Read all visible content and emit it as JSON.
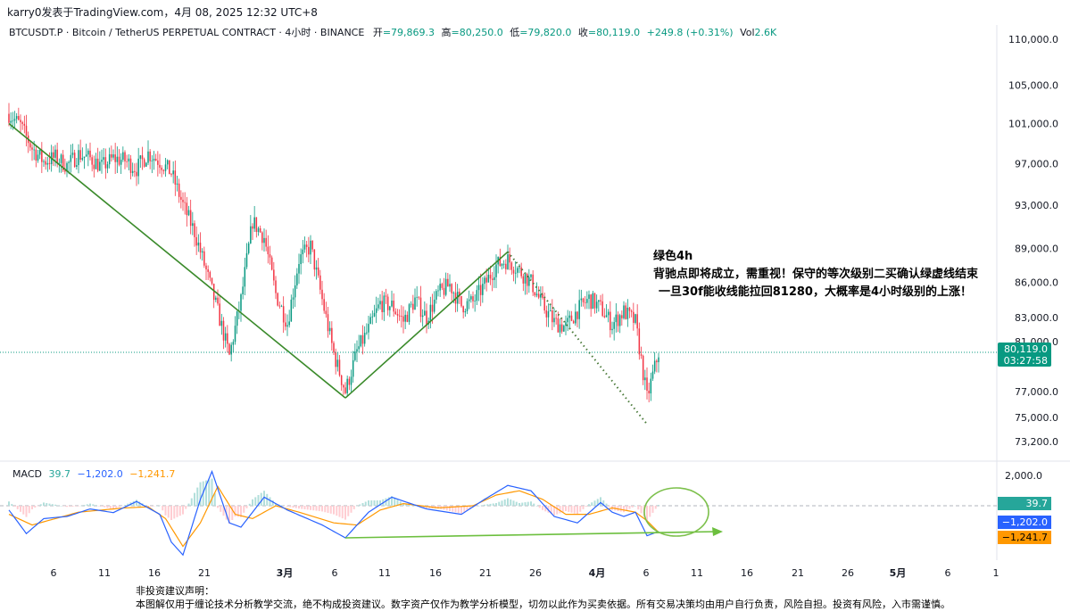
{
  "header": {
    "publisher": "karry0发表于TradingView.com，4月 08, 2025 12:32 UTC+8",
    "symbol": "BTCUSDT.P · Bitcoin / TetherUS PERPETUAL CONTRACT · 4小时 · BINANCE",
    "open_label": "开",
    "open": "=79,869.3",
    "high_label": "高",
    "high": "=80,250.0",
    "low_label": "低",
    "low": "=79,820.0",
    "close_label": "收",
    "close": "=80,119.0",
    "change": "+249.8 (+0.31%)",
    "vol_label": "Vol",
    "vol": "2.6K"
  },
  "annotation": {
    "line1": "绿色4h",
    "line2": "背驰点即将成立，需重视！保守的等次级别二买确认绿虚线结束",
    "line3": "一旦30f能收线能拉回81280，大概率是4小时级别的上涨！"
  },
  "disclaimer": {
    "title": "非投资建议声明：",
    "body": "本图解仅用于缠论技术分析教学交流，绝不构成投资建议。数字资产仅作为教学分析模型，切勿以此作为买卖依据。所有交易决策均由用户自行负责，风险自担。投资有风险，入市需谨慎。"
  },
  "macd_legend": {
    "label": "MACD",
    "hist": "39.7",
    "macd": "−1,202.0",
    "signal": "−1,241.7"
  },
  "colors": {
    "up": "#089981",
    "down": "#f23645",
    "trend_green": "#3a8a2a",
    "macd_line": "#2962ff",
    "signal_line": "#ff9800",
    "circle_green": "#7cc04b",
    "arrow_green": "#6cbf3e"
  },
  "chart_data": {
    "type": "candlestick",
    "symbol": "BTCUSDT.P",
    "timeframe": "4小时",
    "y_ticks": [
      "110,000.0",
      "105,000.0",
      "101,000.0",
      "97,000.0",
      "93,000.0",
      "89,000.0",
      "86,000.0",
      "83,000.0",
      "81,000.0",
      "77,000.0",
      "75,000.0",
      "73,200.0"
    ],
    "y_tick_values": [
      110000,
      105000,
      101000,
      97000,
      93000,
      89000,
      86000,
      83000,
      81000,
      77000,
      75000,
      73200
    ],
    "price_range": [
      72000,
      112000
    ],
    "scale": "log",
    "x_ticks": [
      "6",
      "11",
      "16",
      "21",
      "3月",
      "6",
      "11",
      "16",
      "21",
      "26",
      "4月",
      "6",
      "11",
      "16",
      "21",
      "26",
      "5月",
      "6",
      "1"
    ],
    "last_price": "80,119.0",
    "countdown": "03:27:58",
    "price_path": [
      [
        0,
        102000
      ],
      [
        2,
        100800
      ],
      [
        4,
        98500
      ],
      [
        6,
        97200
      ],
      [
        8,
        97600
      ],
      [
        10,
        96800
      ],
      [
        12,
        97900
      ],
      [
        14,
        97500
      ],
      [
        16,
        96700
      ],
      [
        18,
        97500
      ],
      [
        20,
        97300
      ],
      [
        22,
        96500
      ],
      [
        24,
        98000
      ],
      [
        26,
        97200
      ],
      [
        28,
        96100
      ],
      [
        30,
        93000
      ],
      [
        32,
        90500
      ],
      [
        34,
        87000
      ],
      [
        36,
        83500
      ],
      [
        38,
        79800
      ],
      [
        40,
        84500
      ],
      [
        42,
        91500
      ],
      [
        44,
        90000
      ],
      [
        46,
        85000
      ],
      [
        48,
        82500
      ],
      [
        50,
        88000
      ],
      [
        52,
        89200
      ],
      [
        54,
        84500
      ],
      [
        56,
        80000
      ],
      [
        58,
        77000
      ],
      [
        60,
        80200
      ],
      [
        62,
        82000
      ],
      [
        64,
        84200
      ],
      [
        66,
        84000
      ],
      [
        68,
        82700
      ],
      [
        70,
        84500
      ],
      [
        72,
        83000
      ],
      [
        74,
        85000
      ],
      [
        76,
        85800
      ],
      [
        78,
        84000
      ],
      [
        80,
        84300
      ],
      [
        82,
        85800
      ],
      [
        84,
        87500
      ],
      [
        86,
        88000
      ],
      [
        88,
        87000
      ],
      [
        90,
        86000
      ],
      [
        92,
        84000
      ],
      [
        94,
        82600
      ],
      [
        96,
        82200
      ],
      [
        98,
        83600
      ],
      [
        100,
        84600
      ],
      [
        102,
        83800
      ],
      [
        104,
        82400
      ],
      [
        106,
        83500
      ],
      [
        108,
        82600
      ],
      [
        110,
        76500
      ],
      [
        112,
        80119
      ]
    ],
    "price_key_values": {
      "downtrend_start": 101000,
      "downtrend_low": 76500,
      "uptrend_high": 88700,
      "projection_low": 74500
    },
    "macd": {
      "hist_last": 39.7,
      "macd_last": -1202.0,
      "signal_last": -1241.7,
      "y_tick": "2,000.0",
      "macd_path": [
        [
          0,
          -200
        ],
        [
          3,
          -1300
        ],
        [
          6,
          -600
        ],
        [
          10,
          -500
        ],
        [
          14,
          -150
        ],
        [
          18,
          -320
        ],
        [
          22,
          200
        ],
        [
          26,
          -400
        ],
        [
          28,
          -1700
        ],
        [
          30,
          -2300
        ],
        [
          33,
          300
        ],
        [
          35,
          1600
        ],
        [
          38,
          -800
        ],
        [
          40,
          -1000
        ],
        [
          44,
          400
        ],
        [
          48,
          -200
        ],
        [
          54,
          -900
        ],
        [
          58,
          -1500
        ],
        [
          62,
          -300
        ],
        [
          66,
          400
        ],
        [
          72,
          -150
        ],
        [
          78,
          -400
        ],
        [
          82,
          300
        ],
        [
          86,
          950
        ],
        [
          90,
          700
        ],
        [
          94,
          -500
        ],
        [
          98,
          -800
        ],
        [
          102,
          150
        ],
        [
          104,
          -300
        ],
        [
          106,
          -500
        ],
        [
          108,
          -300
        ],
        [
          110,
          -1400
        ],
        [
          112,
          -1202
        ]
      ],
      "signal_path": [
        [
          0,
          -400
        ],
        [
          4,
          -900
        ],
        [
          8,
          -600
        ],
        [
          12,
          -300
        ],
        [
          16,
          -200
        ],
        [
          20,
          -100
        ],
        [
          24,
          -50
        ],
        [
          27,
          -600
        ],
        [
          30,
          -1900
        ],
        [
          33,
          -800
        ],
        [
          36,
          900
        ],
        [
          39,
          -400
        ],
        [
          42,
          -600
        ],
        [
          46,
          0
        ],
        [
          50,
          -300
        ],
        [
          56,
          -800
        ],
        [
          60,
          -900
        ],
        [
          64,
          -200
        ],
        [
          68,
          100
        ],
        [
          74,
          -100
        ],
        [
          80,
          0
        ],
        [
          84,
          500
        ],
        [
          88,
          700
        ],
        [
          92,
          300
        ],
        [
          96,
          -400
        ],
        [
          100,
          -400
        ],
        [
          104,
          -100
        ],
        [
          108,
          -300
        ],
        [
          110,
          -700
        ],
        [
          112,
          -1241.7
        ]
      ]
    },
    "trendlines": [
      {
        "from": [
          0,
          101000
        ],
        "to": [
          58,
          76500
        ],
        "style": "solid"
      },
      {
        "from": [
          58,
          76500
        ],
        "to": [
          86,
          88700
        ],
        "style": "solid"
      },
      {
        "from": [
          86,
          88700
        ],
        "to": [
          110,
          74500
        ],
        "style": "dotted"
      }
    ]
  }
}
